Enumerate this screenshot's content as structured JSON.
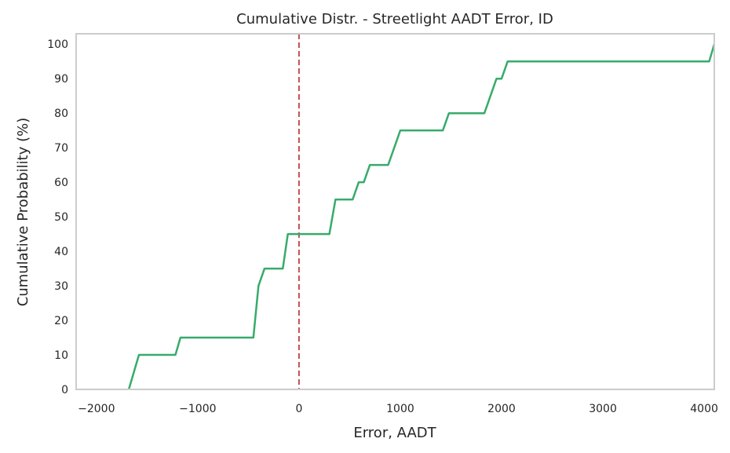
{
  "chart_data": {
    "type": "line",
    "title": "Cumulative Distr. - Streetlight AADT Error, ID",
    "xlabel": "Error, AADT",
    "ylabel": "Cumulative Probability (%)",
    "xlim": [
      -2200,
      4100
    ],
    "ylim": [
      0,
      103
    ],
    "xticks": [
      -2000,
      -1000,
      0,
      1000,
      2000,
      3000,
      4000
    ],
    "xtick_labels": [
      "−2000",
      "−1000",
      "0",
      "1000",
      "2000",
      "3000",
      "4000"
    ],
    "yticks": [
      0,
      10,
      20,
      30,
      40,
      50,
      60,
      70,
      80,
      90,
      100
    ],
    "ytick_labels": [
      "0",
      "10",
      "20",
      "30",
      "40",
      "50",
      "60",
      "70",
      "80",
      "90",
      "100"
    ],
    "grid": false,
    "series": [
      {
        "color": "#37ab6b",
        "x": [
          -1680,
          -1580,
          -1220,
          -1170,
          -450,
          -400,
          -340,
          -160,
          -110,
          300,
          360,
          530,
          590,
          640,
          700,
          880,
          1000,
          1420,
          1480,
          1830,
          1950,
          2000,
          2060,
          4050,
          4100
        ],
        "y": [
          0,
          10,
          10,
          15,
          15,
          30,
          35,
          35,
          45,
          45,
          55,
          55,
          60,
          60,
          65,
          65,
          75,
          75,
          80,
          80,
          90,
          90,
          95,
          95,
          100
        ]
      }
    ],
    "reference_lines": [
      {
        "orientation": "vertical",
        "x": 0,
        "style": "dashed",
        "color": "#c44e52"
      }
    ],
    "frame_color": "#cccccc"
  }
}
